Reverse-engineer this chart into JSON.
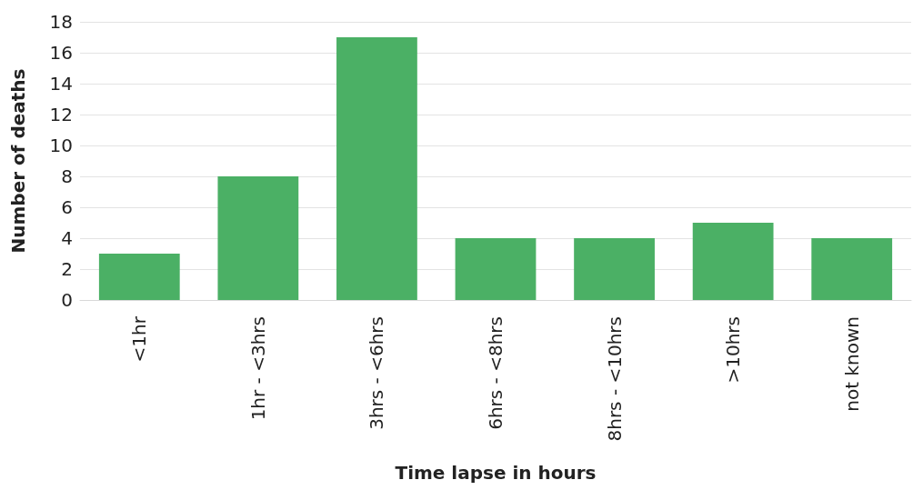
{
  "chart_data": {
    "type": "bar",
    "xlabel": "Time lapse in hours",
    "ylabel": "Number of deaths",
    "categories": [
      "<1hr",
      "1hr - <3hrs",
      "3hrs - <6hrs",
      "6hrs - <8hrs",
      "8hrs - <10hrs",
      ">10hrs",
      "not known"
    ],
    "values": [
      3,
      8,
      17,
      4,
      4,
      5,
      4
    ],
    "color": "#4bb065",
    "ylim": [
      0,
      18
    ],
    "yticks": [
      0,
      2,
      4,
      6,
      8,
      10,
      12,
      14,
      16,
      18
    ],
    "grid": "y"
  }
}
